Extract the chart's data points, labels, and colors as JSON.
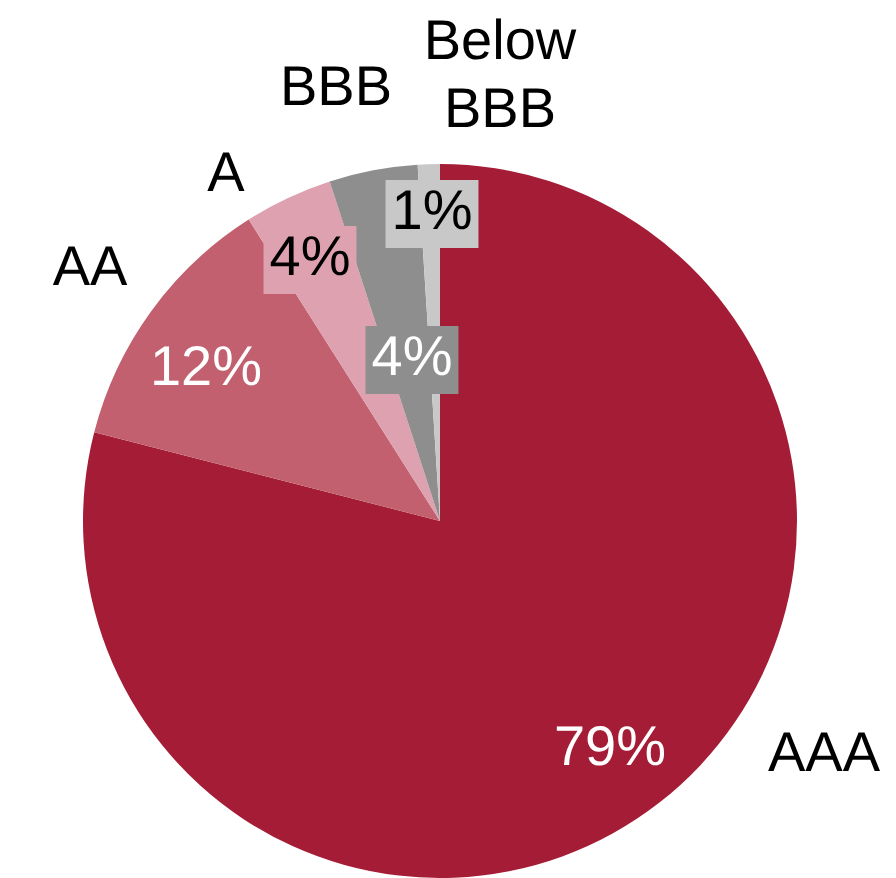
{
  "chart_data": {
    "type": "pie",
    "categories": [
      "AAA",
      "AA",
      "A",
      "BBB",
      "Below BBB"
    ],
    "values": [
      79,
      12,
      4,
      4,
      1
    ],
    "value_labels": [
      "79%",
      "12%",
      "4%",
      "4%",
      "1%"
    ],
    "colors": [
      "#a51c36",
      "#c2606f",
      "#dea1b0",
      "#8e8e8e",
      "#c8c8c8"
    ],
    "legend": false
  }
}
